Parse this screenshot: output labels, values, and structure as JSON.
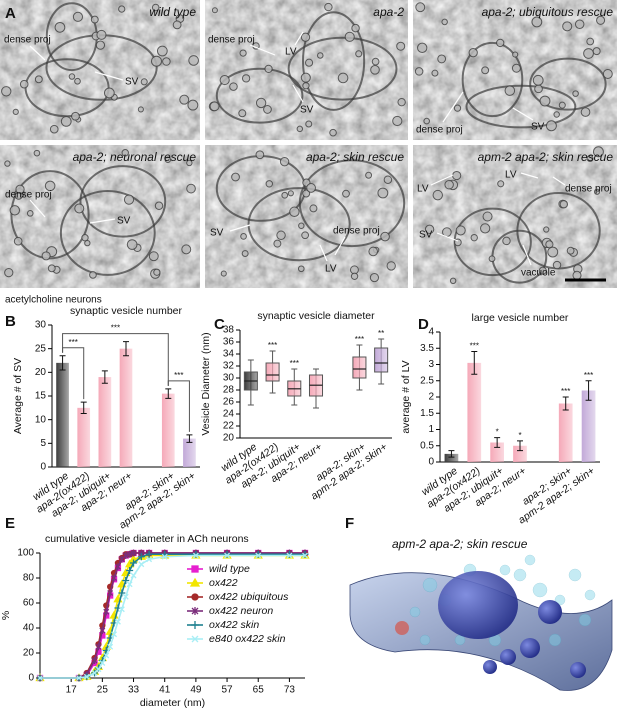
{
  "panel_letters": [
    "A",
    "B",
    "C",
    "D",
    "E",
    "F"
  ],
  "em_panels": [
    {
      "title": "wild type",
      "labels": [
        "dense proj",
        "SV"
      ]
    },
    {
      "title": "apa-2",
      "labels": [
        "dense proj",
        "LV",
        "SV"
      ]
    },
    {
      "title": "apa-2; ubiquitous rescue",
      "labels": [
        "dense proj",
        "SV"
      ]
    },
    {
      "title": "apa-2; neuronal rescue",
      "labels": [
        "dense proj",
        "SV"
      ]
    },
    {
      "title": "apa-2; skin rescue",
      "labels": [
        "SV",
        "dense proj",
        "LV"
      ]
    },
    {
      "title": "apm-2 apa-2; skin rescue",
      "labels": [
        "LV",
        "LV",
        "dense proj",
        "SV",
        "vacuole"
      ]
    }
  ],
  "section_label": "acetylcholine neurons",
  "chart_data": [
    {
      "type": "bar",
      "title": "synaptic vesicle number",
      "y_label": "Average # of SV",
      "categories": [
        "wild type",
        "apa-2(ox422)",
        "apa-2; ubiquit+",
        "apa-2; neur+",
        null,
        "apa-2; skin+",
        "apm-2 apa-2; skin+"
      ],
      "values": [
        22,
        12.5,
        19,
        25,
        null,
        15.5,
        6
      ],
      "errors": [
        1.5,
        1.2,
        1.3,
        1.5,
        null,
        1,
        0.8
      ],
      "colors": [
        "#3d3d3d",
        "#f5a9b8",
        "#f5a9b8",
        "#f5a9b8",
        null,
        "#f5a9b8",
        "#c2a9d8"
      ],
      "ylim": [
        0,
        30
      ],
      "yticks": [
        0,
        5,
        10,
        15,
        20,
        25,
        30
      ],
      "brackets": [
        {
          "text": "***",
          "between": [
            0,
            1
          ]
        },
        {
          "text": "***",
          "between": [
            0,
            5
          ]
        },
        {
          "text": "***",
          "between": [
            5,
            6
          ]
        }
      ]
    },
    {
      "type": "box",
      "title": "synaptic vesicle diameter",
      "y_label": "Vesicle Diameter (nm)",
      "categories": [
        "wild type",
        "apa-2(ox422)",
        "apa-2; ubiquit+",
        "apa-2; neur+",
        null,
        "apa-2; skin+",
        "apm-2 apa-2; skin+"
      ],
      "whisker_low": [
        25.5,
        27.5,
        25.5,
        25,
        null,
        28,
        29
      ],
      "q1": [
        28,
        29.5,
        27,
        27,
        null,
        30,
        31
      ],
      "median": [
        29.5,
        30.5,
        28.2,
        28.8,
        null,
        31.5,
        32.5
      ],
      "q3": [
        31,
        32.5,
        29.5,
        30.5,
        null,
        33.5,
        35
      ],
      "whisker_high": [
        33,
        34.5,
        31.5,
        31.5,
        null,
        35.5,
        36.5
      ],
      "colors": [
        "#3d3d3d",
        "#f5a9b8",
        "#f5a9b8",
        "#f5a9b8",
        null,
        "#f5a9b8",
        "#c2a9d8"
      ],
      "significance": [
        null,
        "***",
        "***",
        null,
        null,
        "***",
        "**"
      ],
      "ylim": [
        20,
        38
      ],
      "yticks": [
        20,
        22,
        24,
        26,
        28,
        30,
        32,
        34,
        36,
        38
      ]
    },
    {
      "type": "bar",
      "title": "large vesicle number",
      "y_label": "average # of LV",
      "categories": [
        "wild type",
        "apa-2(ox422)",
        "apa-2; ubiquit+",
        "apa-2; neur+",
        null,
        "apa-2; skin+",
        "apm-2 apa-2; skin+"
      ],
      "values": [
        0.25,
        3.05,
        0.6,
        0.5,
        null,
        1.8,
        2.2
      ],
      "errors": [
        0.1,
        0.35,
        0.15,
        0.15,
        null,
        0.2,
        0.3
      ],
      "colors": [
        "#3d3d3d",
        "#f5a9b8",
        "#f5a9b8",
        "#f5a9b8",
        null,
        "#f5a9b8",
        "#c2a9d8"
      ],
      "significance": [
        null,
        "***",
        "*",
        "*",
        null,
        "***",
        "***"
      ],
      "ylim": [
        0,
        4
      ],
      "yticks": [
        0,
        0.5,
        1,
        1.5,
        2,
        2.5,
        3,
        3.5,
        4
      ]
    },
    {
      "type": "line",
      "title": "cumulative vesicle diameter in ACh neurons",
      "y_label": "%",
      "x_label": "diameter (nm)",
      "x": [
        9,
        19,
        21,
        23,
        24,
        25,
        26,
        27,
        28,
        29,
        30,
        31,
        32,
        33,
        35,
        37,
        41,
        49,
        57,
        65,
        73,
        77
      ],
      "series": [
        {
          "name": "wild type",
          "color": "#e61ecf",
          "marker": "square",
          "values": [
            0,
            0,
            2,
            12,
            21,
            34,
            50,
            66,
            79,
            88,
            95,
            98,
            99,
            100,
            100,
            100,
            100,
            100,
            100,
            100,
            100,
            100
          ]
        },
        {
          "name": "ox422",
          "color": "#f2e600",
          "marker": "triangle",
          "values": [
            0,
            0,
            1,
            5,
            9,
            16,
            25,
            37,
            50,
            63,
            75,
            84,
            91,
            95,
            97,
            98,
            98,
            98,
            98,
            98,
            98,
            98
          ]
        },
        {
          "name": "ox422 ubiquitous",
          "color": "#a52a2a",
          "marker": "circle",
          "values": [
            0,
            0,
            4,
            16,
            27,
            42,
            58,
            73,
            84,
            92,
            96,
            99,
            99,
            100,
            100,
            100,
            100,
            100,
            100,
            100,
            100,
            100
          ]
        },
        {
          "name": "ox422 neuron",
          "color": "#7b2d7b",
          "marker": "star",
          "values": [
            0,
            0,
            3,
            14,
            25,
            38,
            53,
            68,
            80,
            89,
            95,
            98,
            99,
            100,
            100,
            100,
            100,
            100,
            100,
            100,
            100,
            100
          ]
        },
        {
          "name": "ox422 skin",
          "color": "#1f8090",
          "marker": "plus",
          "values": [
            0,
            0,
            1,
            4,
            8,
            14,
            22,
            32,
            44,
            56,
            68,
            78,
            86,
            92,
            97,
            99,
            99,
            99,
            99,
            99,
            99,
            99
          ]
        },
        {
          "name": "e840 ox422 skin",
          "color": "#a8eef5",
          "marker": "x",
          "values": [
            0,
            0,
            1,
            4,
            7,
            12,
            18,
            25,
            35,
            45,
            55,
            65,
            75,
            82,
            91,
            95,
            97,
            98,
            98,
            98,
            98,
            98
          ]
        }
      ],
      "xlim": [
        9,
        77
      ],
      "xticks": [
        17,
        25,
        33,
        41,
        49,
        57,
        65,
        73
      ],
      "ylim": [
        0,
        100
      ],
      "yticks": [
        0,
        20,
        40,
        60,
        80,
        100
      ]
    }
  ],
  "render": {
    "title": "apm-2 apa-2; skin rescue"
  }
}
